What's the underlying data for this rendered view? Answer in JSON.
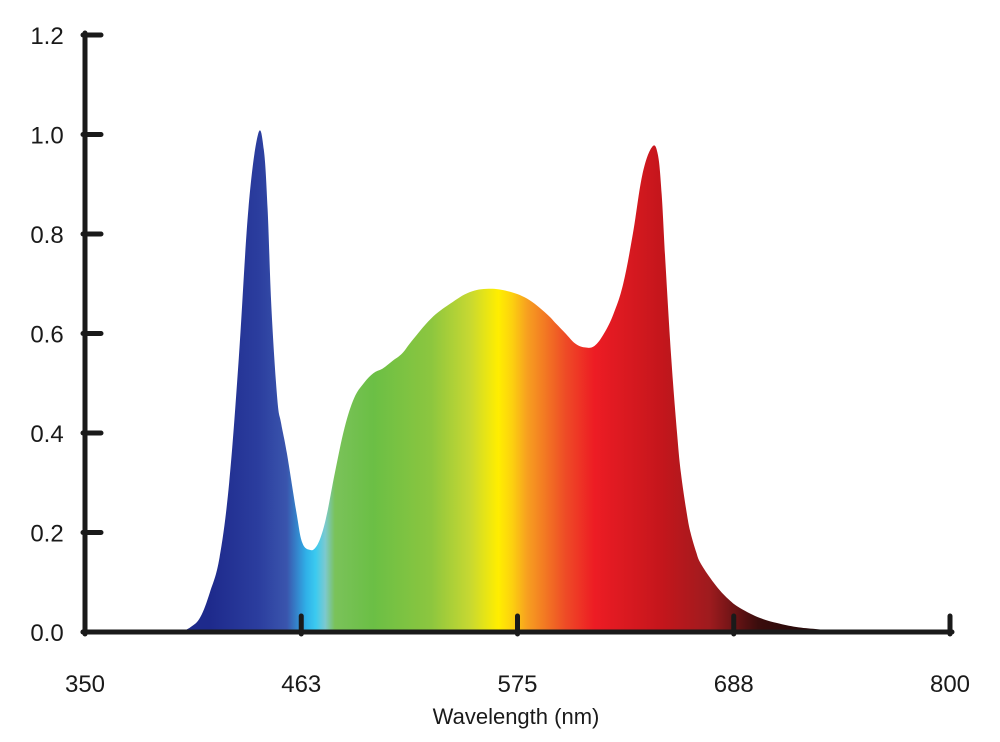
{
  "chart_data": {
    "type": "area",
    "title": "",
    "xlabel": "Wavelength (nm)",
    "ylabel": "",
    "xlim": [
      350,
      800
    ],
    "ylim": [
      0,
      1.2
    ],
    "x_ticks": [
      {
        "value": 350,
        "label": "350"
      },
      {
        "value": 462.5,
        "label": "463"
      },
      {
        "value": 575,
        "label": "575"
      },
      {
        "value": 687.5,
        "label": "688"
      },
      {
        "value": 800,
        "label": "800"
      }
    ],
    "y_ticks": [
      {
        "value": 0.0,
        "label": "0.0"
      },
      {
        "value": 0.2,
        "label": "0.2"
      },
      {
        "value": 0.4,
        "label": "0.4"
      },
      {
        "value": 0.6,
        "label": "0.6"
      },
      {
        "value": 0.8,
        "label": "0.8"
      },
      {
        "value": 1.0,
        "label": "1.0"
      },
      {
        "value": 1.2,
        "label": "1.2"
      }
    ],
    "grid": false,
    "legend": "none",
    "axis_color": "#1a1a1a",
    "series": [
      {
        "x": [
          400,
          405,
          410,
          415,
          420,
          425,
          430,
          435,
          440,
          443,
          445,
          447,
          450,
          452,
          455,
          460,
          463,
          467,
          470,
          473,
          476,
          480,
          485,
          490,
          495,
          500,
          505,
          510,
          515,
          520,
          530,
          540,
          550,
          560,
          570,
          580,
          590,
          595,
          600,
          605,
          610,
          615,
          620,
          625,
          630,
          635,
          640,
          645,
          648,
          650,
          652,
          655,
          658,
          660,
          663,
          665,
          668,
          670,
          675,
          680,
          685,
          690,
          700,
          710,
          720,
          730,
          740,
          750,
          760,
          770,
          780,
          790,
          800
        ],
        "y": [
          0.0,
          0.01,
          0.03,
          0.08,
          0.15,
          0.3,
          0.55,
          0.85,
          1.0,
          0.97,
          0.85,
          0.65,
          0.47,
          0.42,
          0.36,
          0.24,
          0.18,
          0.165,
          0.17,
          0.195,
          0.24,
          0.32,
          0.41,
          0.47,
          0.5,
          0.52,
          0.53,
          0.545,
          0.56,
          0.585,
          0.63,
          0.66,
          0.683,
          0.69,
          0.685,
          0.67,
          0.64,
          0.62,
          0.6,
          0.58,
          0.572,
          0.575,
          0.6,
          0.64,
          0.7,
          0.8,
          0.92,
          0.975,
          0.96,
          0.88,
          0.74,
          0.55,
          0.4,
          0.32,
          0.24,
          0.2,
          0.16,
          0.14,
          0.11,
          0.085,
          0.065,
          0.05,
          0.03,
          0.018,
          0.01,
          0.006,
          0.003,
          0.002,
          0.001,
          0.0005,
          0.0,
          0.0,
          0.0
        ]
      }
    ],
    "spectrum_colors": [
      {
        "nm": 415,
        "color": "#1e2a8c"
      },
      {
        "nm": 440,
        "color": "#2b3d9e"
      },
      {
        "nm": 455,
        "color": "#3a55ad"
      },
      {
        "nm": 465,
        "color": "#2fb0e8"
      },
      {
        "nm": 470,
        "color": "#3bcaf0"
      },
      {
        "nm": 475,
        "color": "#7cc9cf"
      },
      {
        "nm": 480,
        "color": "#7ac25a"
      },
      {
        "nm": 500,
        "color": "#6bbf45"
      },
      {
        "nm": 530,
        "color": "#8cc63f"
      },
      {
        "nm": 550,
        "color": "#c6d832"
      },
      {
        "nm": 565,
        "color": "#ffee00"
      },
      {
        "nm": 572,
        "color": "#fcd20f"
      },
      {
        "nm": 580,
        "color": "#f7a020"
      },
      {
        "nm": 600,
        "color": "#ee4b26"
      },
      {
        "nm": 615,
        "color": "#ed1c24"
      },
      {
        "nm": 650,
        "color": "#c4161c"
      },
      {
        "nm": 675,
        "color": "#9e1b1e"
      },
      {
        "nm": 700,
        "color": "#3b0d0d"
      },
      {
        "nm": 720,
        "color": "#2a0a0a"
      }
    ]
  }
}
